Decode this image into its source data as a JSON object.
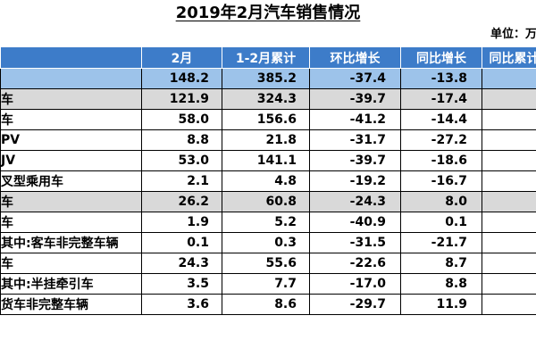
{
  "title": "2019年2月汽车销售情况",
  "unit_label": "单位：万",
  "columns": [
    "",
    "2月",
    "1-2月累计",
    "环比增长",
    "同比增长",
    "同比累计"
  ],
  "rows": [
    {
      "name": "",
      "feb": "148.2",
      "cum": "385.2",
      "mom": "-37.4",
      "yoy": "-13.8",
      "yoy_cum": "",
      "style": "total"
    },
    {
      "name": "车",
      "feb": "121.9",
      "cum": "324.3",
      "mom": "-39.7",
      "yoy": "-17.4",
      "yoy_cum": "",
      "style": "group"
    },
    {
      "name": "车",
      "feb": "58.0",
      "cum": "156.6",
      "mom": "-41.2",
      "yoy": "-14.4",
      "yoy_cum": "",
      "style": "plain"
    },
    {
      "name": "PV",
      "feb": "8.8",
      "cum": "21.8",
      "mom": "-31.7",
      "yoy": "-27.2",
      "yoy_cum": "",
      "style": "plain"
    },
    {
      "name": "JV",
      "feb": "53.0",
      "cum": "141.1",
      "mom": "-39.7",
      "yoy": "-18.6",
      "yoy_cum": "",
      "style": "plain"
    },
    {
      "name": "叉型乘用车",
      "feb": "2.1",
      "cum": "4.8",
      "mom": "-19.2",
      "yoy": "-16.7",
      "yoy_cum": "",
      "style": "plain"
    },
    {
      "name": "车",
      "feb": "26.2",
      "cum": "60.8",
      "mom": "-24.3",
      "yoy": "8.0",
      "yoy_cum": "",
      "style": "group"
    },
    {
      "name": "车",
      "feb": "1.9",
      "cum": "5.2",
      "mom": "-40.9",
      "yoy": "0.1",
      "yoy_cum": "",
      "style": "plain"
    },
    {
      "name": "其中:客车非完整车辆",
      "feb": "0.1",
      "cum": "0.3",
      "mom": "-31.5",
      "yoy": "-21.7",
      "yoy_cum": "",
      "style": "plain"
    },
    {
      "name": "车",
      "feb": "24.3",
      "cum": "55.6",
      "mom": "-22.6",
      "yoy": "8.7",
      "yoy_cum": "",
      "style": "plain"
    },
    {
      "name": "其中:半挂牵引车",
      "feb": "3.5",
      "cum": "7.7",
      "mom": "-17.0",
      "yoy": "8.8",
      "yoy_cum": "",
      "style": "plain"
    },
    {
      "name": "货车非完整车辆",
      "feb": "3.6",
      "cum": "8.6",
      "mom": "-29.7",
      "yoy": "11.9",
      "yoy_cum": "",
      "style": "plain"
    }
  ]
}
